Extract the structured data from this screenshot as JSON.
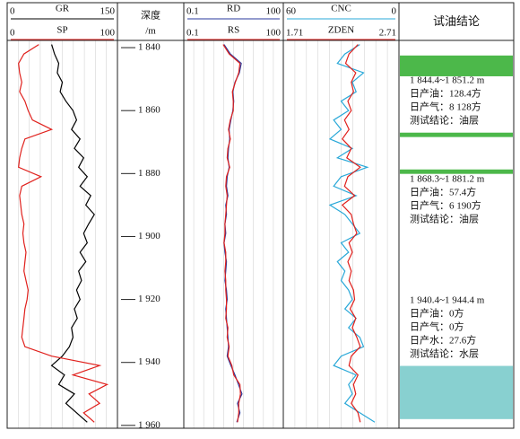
{
  "chart_data": [
    {
      "type": "line",
      "series": [
        {
          "name": "GR",
          "color": "#000000",
          "xlim": [
            0,
            150
          ],
          "values": [
            60,
            64,
            70,
            68,
            75,
            72,
            80,
            90,
            95,
            88,
            100,
            92,
            105,
            98,
            110,
            100,
            115,
            108,
            120,
            112,
            105,
            110,
            100,
            108,
            98,
            102,
            95,
            100,
            92,
            96,
            88,
            90,
            85,
            75,
            60,
            78,
            70,
            92,
            80,
            95,
            110
          ]
        },
        {
          "name": "SP",
          "color": "#e0201c",
          "xlim": [
            0,
            100
          ],
          "values": [
            28,
            14,
            9,
            10,
            12,
            10,
            15,
            18,
            22,
            40,
            15,
            12,
            10,
            9,
            30,
            12,
            10,
            11,
            12,
            14,
            13,
            14,
            16,
            15,
            14,
            16,
            18,
            17,
            15,
            14,
            13,
            12,
            15,
            40,
            85,
            60,
            92,
            75,
            85,
            70,
            80
          ]
        }
      ]
    },
    {
      "type": "depth",
      "title": "深度",
      "unit": "/m",
      "ylim": [
        1837.7,
        1960.9
      ],
      "yticks": [
        {
          "value": 1840,
          "label": "1 840"
        },
        {
          "value": 1860,
          "label": "1 860"
        },
        {
          "value": 1880,
          "label": "1 880"
        },
        {
          "value": 1900,
          "label": "1 900"
        },
        {
          "value": 1920,
          "label": "1 920"
        },
        {
          "value": 1940,
          "label": "1 940"
        },
        {
          "value": 1960,
          "label": "1 960"
        }
      ],
      "y": [
        1839,
        1842,
        1845,
        1848,
        1851,
        1854,
        1857,
        1860,
        1863,
        1866,
        1869,
        1872,
        1875,
        1878,
        1881,
        1884,
        1887,
        1890,
        1893,
        1896,
        1899,
        1902,
        1905,
        1908,
        1911,
        1914,
        1917,
        1920,
        1923,
        1926,
        1929,
        1932,
        1935,
        1938,
        1941,
        1944,
        1947,
        1950,
        1953,
        1956,
        1959
      ]
    },
    {
      "type": "line",
      "log_scale": true,
      "series": [
        {
          "name": "RD",
          "color": "#2a3a9c",
          "xlim": [
            0.1,
            100
          ],
          "values": [
            1.6,
            2.5,
            5.5,
            4.8,
            3.5,
            3.0,
            3.2,
            3.0,
            2.6,
            2.3,
            2.4,
            2.2,
            2.1,
            2.3,
            2.0,
            1.9,
            2.1,
            1.8,
            1.9,
            1.7,
            1.8,
            1.6,
            1.7,
            1.9,
            1.8,
            1.7,
            1.9,
            2.0,
            1.8,
            1.9,
            2.0,
            2.1,
            2.2,
            2.0,
            2.6,
            3.5,
            4.5,
            5.8,
            4.2,
            5.0,
            4.0
          ]
        },
        {
          "name": "RS",
          "color": "#e0201c",
          "xlim": [
            0.1,
            100
          ],
          "values": [
            1.5,
            2.3,
            5.0,
            4.6,
            3.6,
            2.9,
            3.1,
            3.1,
            2.5,
            2.2,
            2.5,
            2.1,
            2.0,
            2.4,
            1.9,
            1.8,
            2.0,
            1.9,
            1.8,
            1.7,
            1.7,
            1.6,
            1.8,
            1.8,
            1.7,
            1.8,
            1.8,
            1.9,
            1.9,
            1.8,
            2.1,
            2.0,
            2.3,
            2.1,
            2.8,
            3.2,
            5.0,
            5.2,
            4.6,
            4.6,
            4.2
          ]
        }
      ]
    },
    {
      "type": "line",
      "series": [
        {
          "name": "CNC",
          "color": "#29a8d8",
          "xlim": [
            60,
            0
          ],
          "values": [
            20,
            28,
            32,
            18,
            24,
            22,
            30,
            26,
            34,
            30,
            36,
            24,
            32,
            16,
            30,
            34,
            22,
            36,
            28,
            24,
            20,
            30,
            26,
            32,
            28,
            30,
            26,
            24,
            28,
            22,
            26,
            20,
            18,
            30,
            34,
            22,
            26,
            24,
            28,
            20,
            12
          ]
        },
        {
          "name": "ZDEN",
          "color": "#e0201c",
          "xlim": [
            1.71,
            2.71
          ],
          "values": [
            2.36,
            2.28,
            2.25,
            2.34,
            2.3,
            2.32,
            2.27,
            2.3,
            2.24,
            2.28,
            2.22,
            2.3,
            2.26,
            2.38,
            2.27,
            2.24,
            2.33,
            2.22,
            2.3,
            2.32,
            2.35,
            2.28,
            2.31,
            2.27,
            2.3,
            2.28,
            2.32,
            2.33,
            2.29,
            2.34,
            2.31,
            2.35,
            2.38,
            2.3,
            2.28,
            2.36,
            2.32,
            2.34,
            2.3,
            2.36,
            2.38
          ]
        }
      ]
    },
    {
      "type": "zones",
      "title": "试油结论",
      "zones": [
        {
          "top": 1842.5,
          "bottom": 1849.1,
          "color": "#4cb84a"
        },
        {
          "top": 1867,
          "bottom": 1868.4,
          "color": "#4cb84a"
        },
        {
          "top": 1878.7,
          "bottom": 1880.1,
          "color": "#4cb84a"
        },
        {
          "top": 1941.1,
          "bottom": 1958,
          "color": "#88d0d0"
        }
      ],
      "notes": [
        [
          "1 844.4~1 851.2 m",
          "日产油：128.4方",
          "日产气：8 128方",
          "测试结论：油层"
        ],
        [
          "1 868.3~1 881.2 m",
          "日产油：57.4方",
          "日产气：6 190方",
          "测试结论：油层"
        ],
        [
          "1 940.4~1 944.4 m",
          "日产油：0方",
          "日产气：0方",
          "日产水：27.6方",
          "测试结论：水层"
        ]
      ]
    }
  ]
}
